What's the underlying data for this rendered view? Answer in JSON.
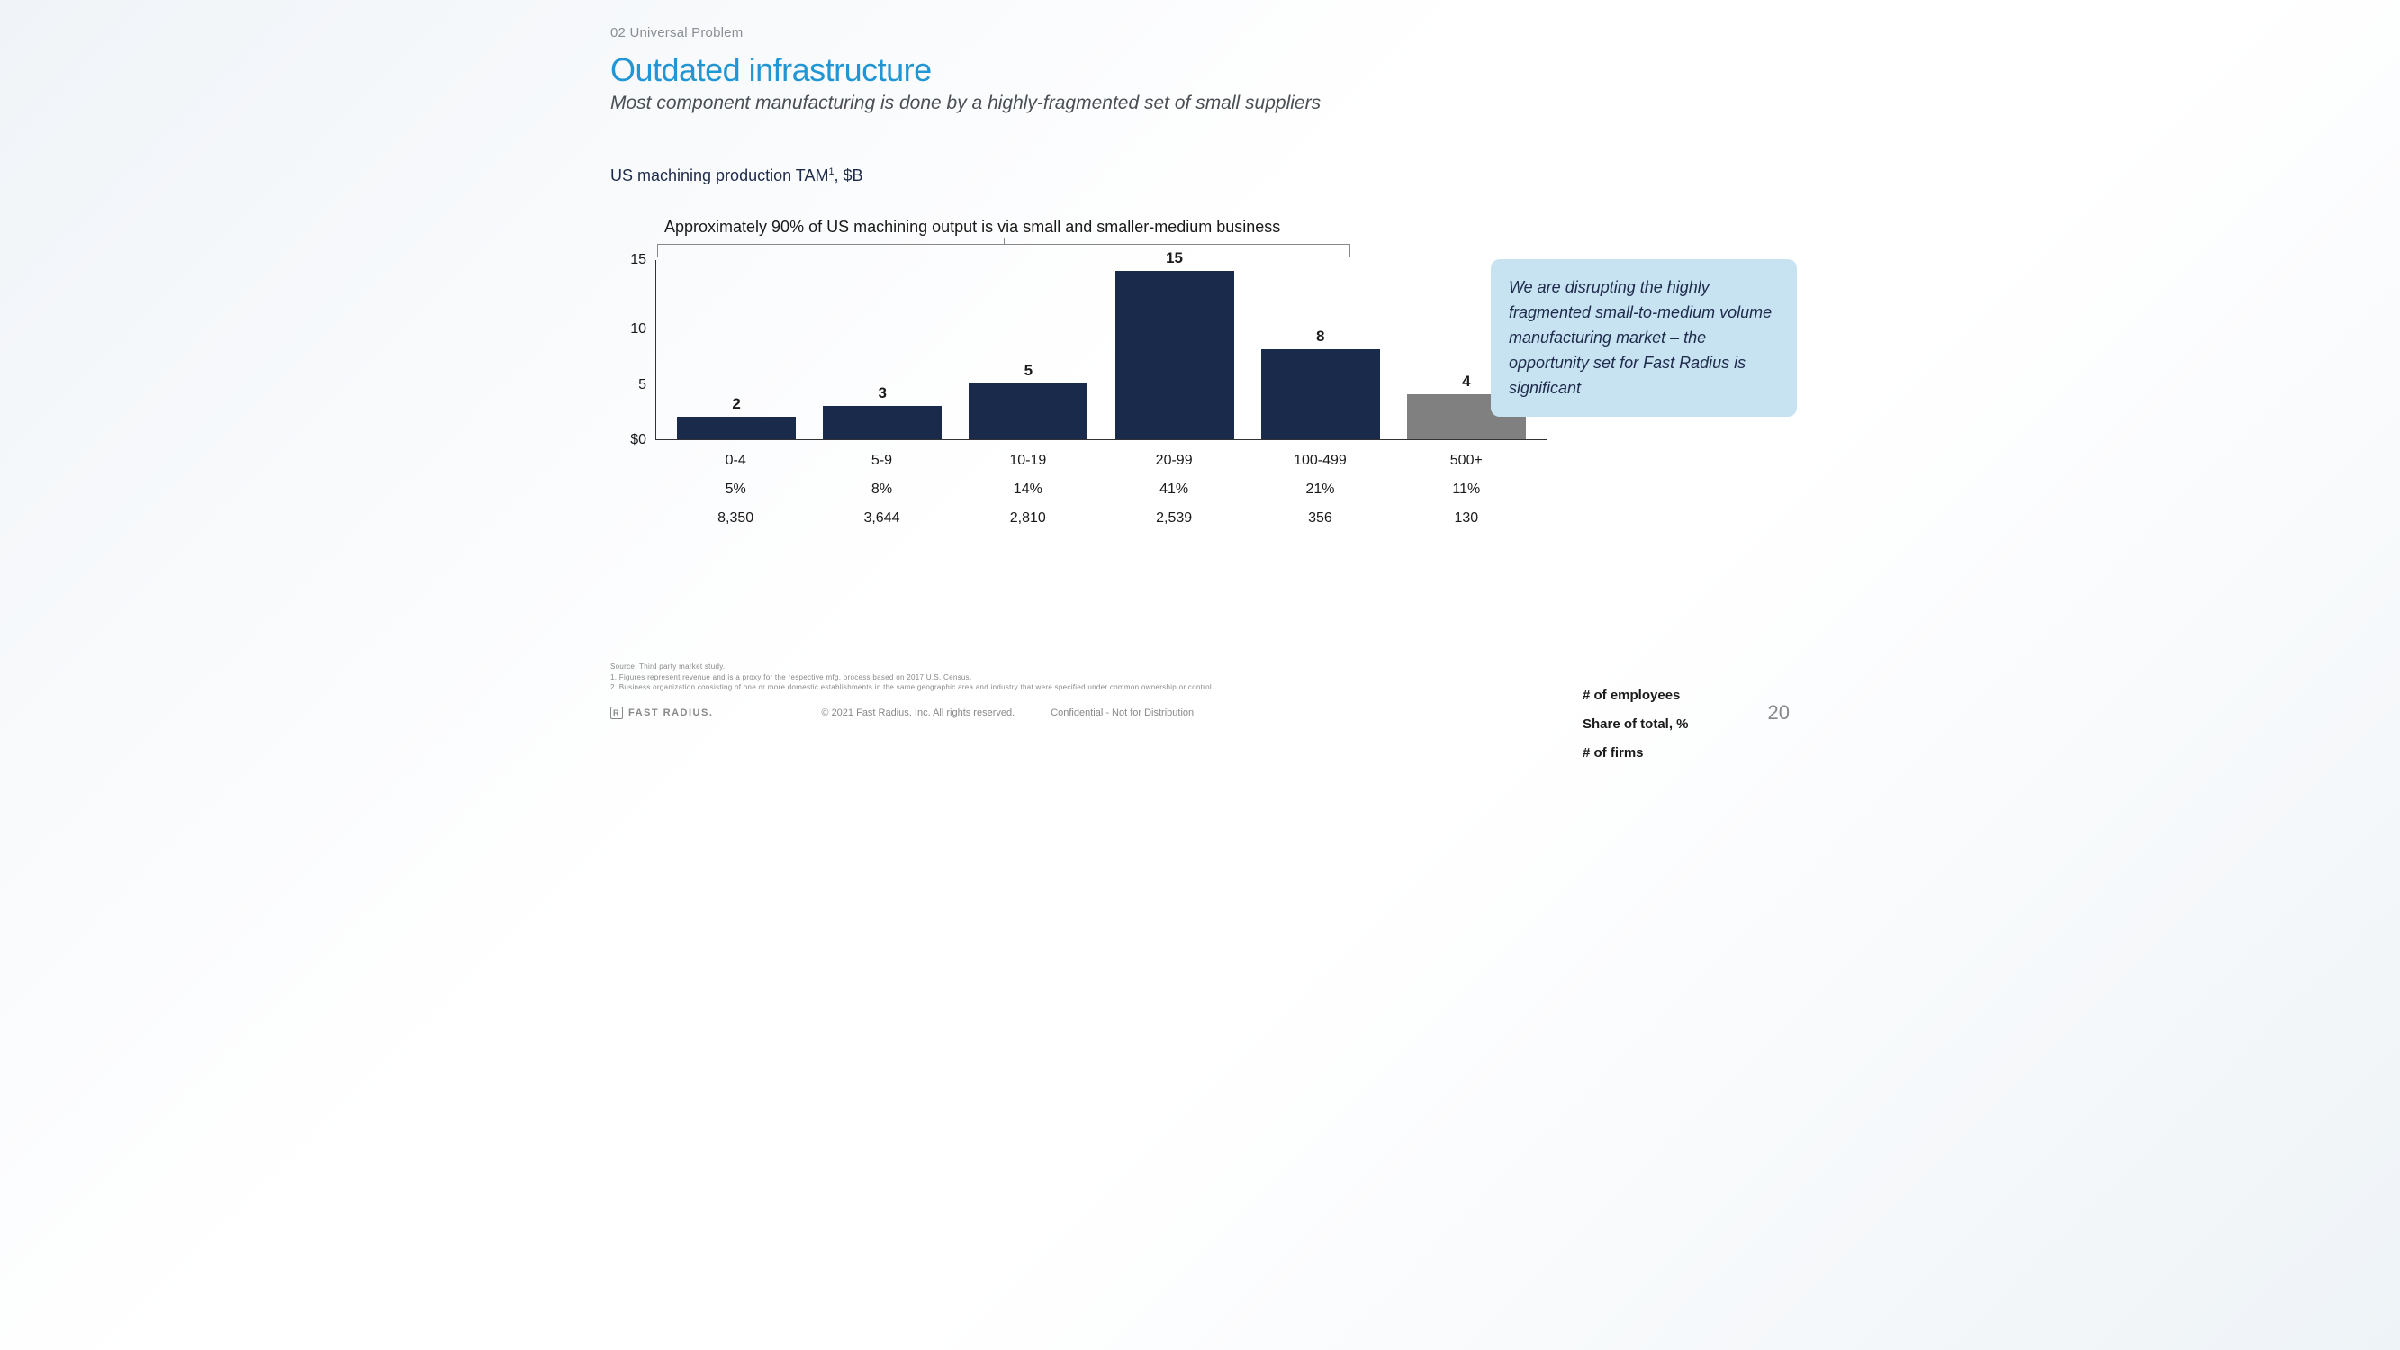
{
  "section_label": "02 Universal Problem",
  "title": "Outdated infrastructure",
  "subtitle": "Most component manufacturing is done by a highly-fragmented set of small suppliers",
  "chart_title_main": "US machining production TAM",
  "chart_title_sup": "1",
  "chart_title_suffix": ", $B",
  "annotation": "Approximately 90% of US machining output is via small and smaller-medium business",
  "chart": {
    "type": "bar",
    "y_ticks": [
      "15",
      "10",
      "5",
      "$0"
    ],
    "y_max": 16,
    "bars": [
      {
        "label": "2",
        "value": 2,
        "color": "#1a2a4a",
        "highlighted": true
      },
      {
        "label": "3",
        "value": 3,
        "color": "#1a2a4a",
        "highlighted": true
      },
      {
        "label": "5",
        "value": 5,
        "color": "#1a2a4a",
        "highlighted": true
      },
      {
        "label": "15",
        "value": 15,
        "color": "#1a2a4a",
        "highlighted": true
      },
      {
        "label": "8",
        "value": 8,
        "color": "#1a2a4a",
        "highlighted": true
      },
      {
        "label": "4",
        "value": 4,
        "color": "#808080",
        "highlighted": false
      }
    ],
    "x_rows": [
      {
        "label": "# of employees",
        "cells": [
          "0-4",
          "5-9",
          "10-19",
          "20-99",
          "100-499",
          "500+"
        ]
      },
      {
        "label": "Share of total, %",
        "cells": [
          "5%",
          "8%",
          "14%",
          "41%",
          "21%",
          "11%"
        ]
      },
      {
        "label": "# of firms",
        "cells": [
          "8,350",
          "3,644",
          "2,810",
          "2,539",
          "356",
          "130"
        ]
      }
    ]
  },
  "callout": "We are disrupting the highly fragmented small-to-medium volume manufacturing market – the opportunity set for Fast Radius is significant",
  "footnotes": [
    "Source: Third party market study.",
    "1. Figures represent revenue  and is a proxy for the respective mfg. process based on 2017 U.S. Census.",
    "2. Business organization consisting of one or more domestic establishments in the same geographic area and industry that were specified under common ownership or control."
  ],
  "footer": {
    "brand": "FAST RADIUS.",
    "brand_icon": "R",
    "copyright": "© 2021 Fast Radius, Inc. All rights reserved.",
    "confidential": "Confidential - Not for Distribution",
    "page": "20"
  }
}
